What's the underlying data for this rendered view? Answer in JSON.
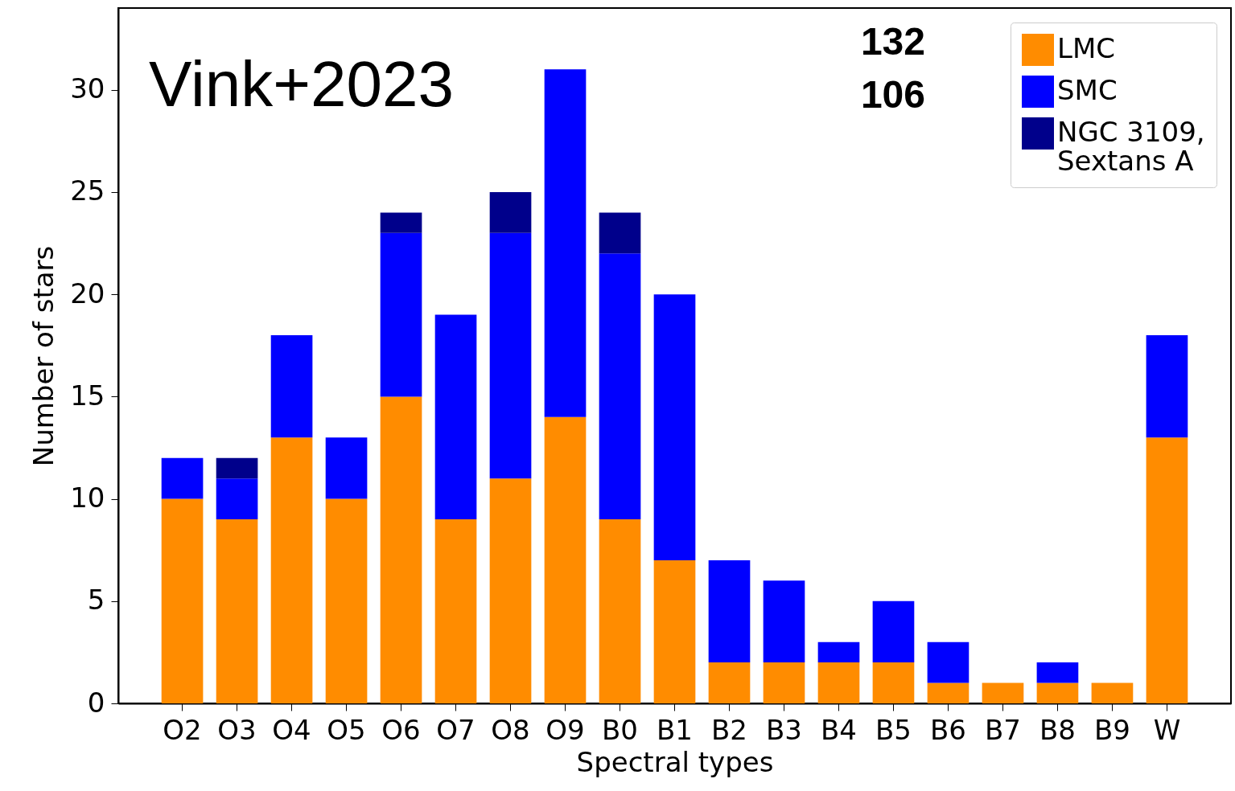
{
  "chart_data": {
    "type": "bar",
    "stacked": true,
    "xlabel": "Spectral types",
    "ylabel": "Number of stars",
    "categories": [
      "O2",
      "O3",
      "O4",
      "O5",
      "O6",
      "O7",
      "O8",
      "O9",
      "B0",
      "B1",
      "B2",
      "B3",
      "B4",
      "B5",
      "B6",
      "B7",
      "B8",
      "B9",
      "W"
    ],
    "series": [
      {
        "name": "LMC",
        "color": "#ff8c00",
        "values": [
          10,
          9,
          13,
          10,
          15,
          9,
          11,
          14,
          9,
          7,
          2,
          2,
          2,
          2,
          1,
          1,
          1,
          1,
          13
        ]
      },
      {
        "name": "SMC",
        "color": "#0000ff",
        "values": [
          2,
          2,
          5,
          3,
          8,
          10,
          12,
          17,
          13,
          13,
          5,
          4,
          1,
          3,
          2,
          0,
          1,
          0,
          5
        ]
      },
      {
        "name": "NGC 3109, Sextans A",
        "color": "#00008b",
        "values": [
          0,
          1,
          0,
          0,
          1,
          0,
          2,
          0,
          2,
          0,
          0,
          0,
          0,
          0,
          0,
          0,
          0,
          0,
          0
        ]
      }
    ],
    "ylim": [
      0,
      34
    ],
    "yticks": [
      0,
      5,
      10,
      15,
      20,
      25,
      30
    ],
    "grid": false,
    "legend": "top right",
    "annotations": [
      "Vink+2023",
      "132",
      "106"
    ]
  }
}
